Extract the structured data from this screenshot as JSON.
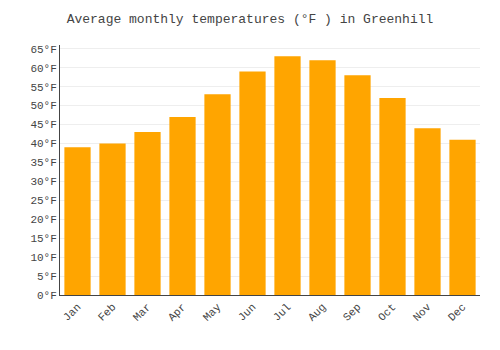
{
  "chart_data": {
    "type": "bar",
    "title": "Average monthly temperatures (°F ) in Greenhill",
    "categories": [
      "Jan",
      "Feb",
      "Mar",
      "Apr",
      "May",
      "Jun",
      "Jul",
      "Aug",
      "Sep",
      "Oct",
      "Nov",
      "Dec"
    ],
    "values": [
      39,
      40,
      43,
      47,
      53,
      59,
      63,
      62,
      58,
      52,
      44,
      41
    ],
    "color": "#FFA500",
    "ylim": [
      0,
      66
    ],
    "yticks": [
      {
        "value": 0,
        "label": "0°F"
      },
      {
        "value": 5,
        "label": "5°F"
      },
      {
        "value": 10,
        "label": "10°F"
      },
      {
        "value": 15,
        "label": "15°F"
      },
      {
        "value": 20,
        "label": "20°F"
      },
      {
        "value": 25,
        "label": "25°F"
      },
      {
        "value": 30,
        "label": "30°F"
      },
      {
        "value": 35,
        "label": "35°F"
      },
      {
        "value": 40,
        "label": "40°F"
      },
      {
        "value": 45,
        "label": "45°F"
      },
      {
        "value": 50,
        "label": "50°F"
      },
      {
        "value": 55,
        "label": "55°F"
      },
      {
        "value": 60,
        "label": "60°F"
      },
      {
        "value": 65,
        "label": "65°F"
      }
    ],
    "grid": true
  }
}
